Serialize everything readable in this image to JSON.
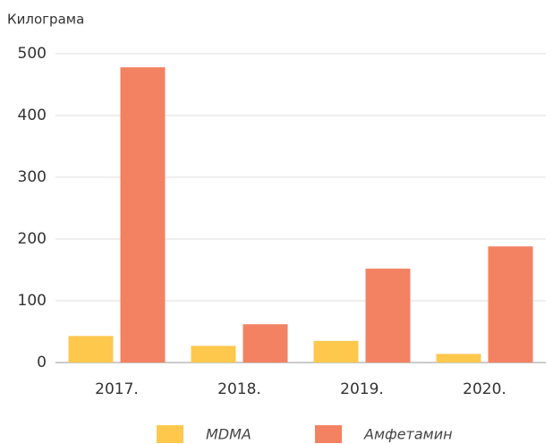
{
  "chart_data": {
    "type": "bar",
    "y_label": "Килограма",
    "categories": [
      "2017.",
      "2018.",
      "2019.",
      "2020."
    ],
    "series": [
      {
        "name": "MDMA",
        "color": "#fec84d",
        "values": [
          43,
          27,
          35,
          14
        ]
      },
      {
        "name": "Амфетамин",
        "color": "#f28262",
        "values": [
          478,
          62,
          152,
          188
        ]
      }
    ],
    "ylim": [
      0,
      500
    ],
    "yticks": [
      0,
      100,
      200,
      300,
      400,
      500
    ],
    "grid": true,
    "legend": "bottom"
  }
}
